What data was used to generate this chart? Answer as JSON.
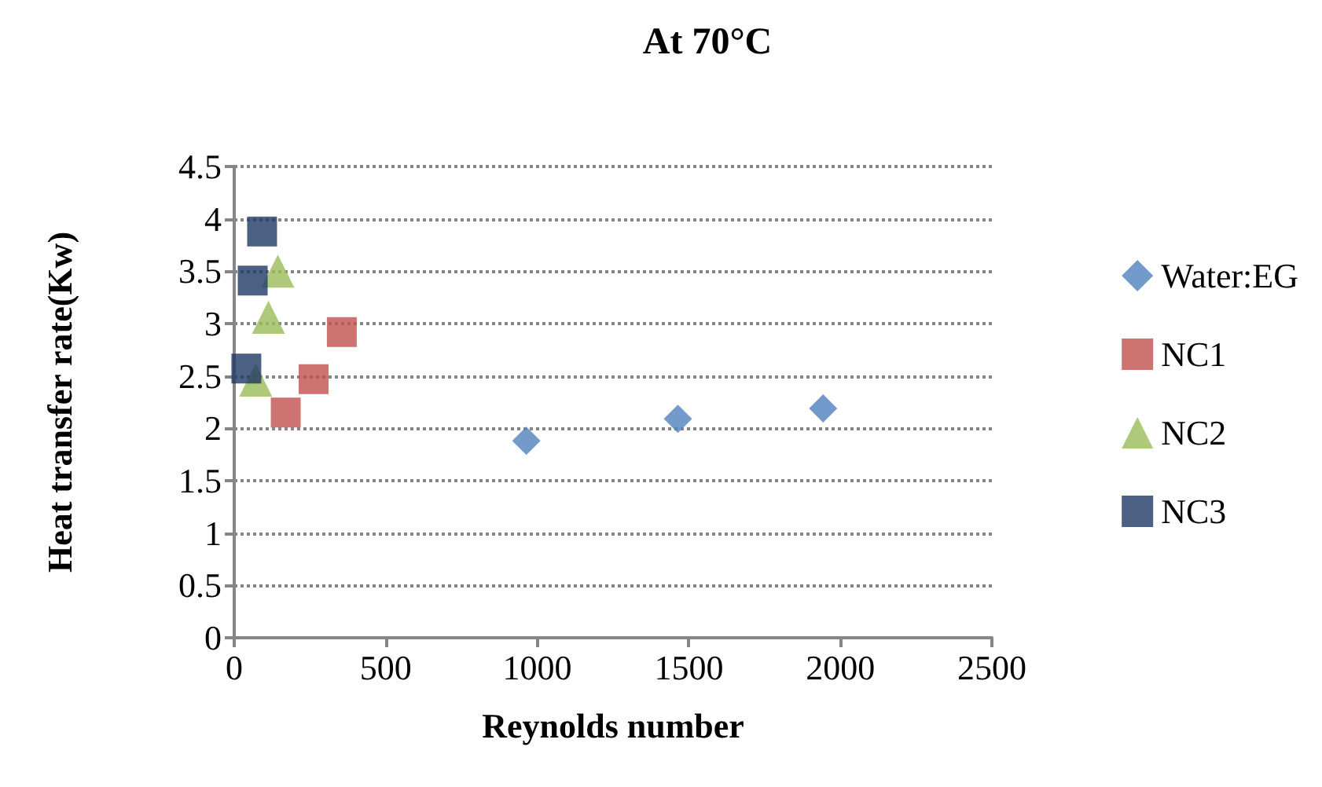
{
  "chart_data": {
    "type": "scatter",
    "title": "At 70°C",
    "xlabel": "Reynolds number",
    "ylabel": "Heat transfer rate(Kw)",
    "xlim": [
      0,
      2500
    ],
    "xticks": [
      0,
      500,
      {
        "value": 1000,
        "label": "1000"
      },
      {
        "value": 1500,
        "label": "1500"
      },
      {
        "value": 2000,
        "label": "2000"
      },
      {
        "value": 2500,
        "label": "2500"
      }
    ],
    "ylim": [
      0,
      4.5
    ],
    "yticks": [
      0,
      0.5,
      1,
      1.5,
      2,
      2.5,
      3,
      3.5,
      4,
      4.5
    ],
    "grid": "y",
    "legend": "right",
    "series": [
      {
        "name": "Water:EG",
        "color": "#4f81bd",
        "marker": "diamond",
        "x": [
          964,
          1464,
          1943
        ],
        "values": [
          1.88,
          2.09,
          2.19
        ]
      },
      {
        "name": "NC1",
        "color": "#c0504d",
        "marker": "square",
        "x": [
          170,
          262,
          355
        ],
        "values": [
          2.15,
          2.47,
          2.92
        ]
      },
      {
        "name": "NC2",
        "color": "#9bbb59",
        "marker": "triangle",
        "x": [
          71,
          113,
          144
        ],
        "values": [
          2.46,
          3.06,
          3.5
        ]
      },
      {
        "name": "NC3",
        "color": "#1f3864",
        "marker": "square",
        "x": [
          40,
          61,
          92
        ],
        "values": [
          2.57,
          3.41,
          3.88
        ]
      }
    ]
  }
}
